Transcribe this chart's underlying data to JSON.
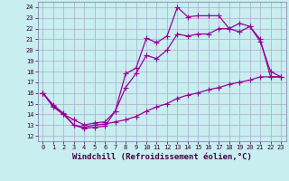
{
  "background_color": "#c8eef0",
  "grid_color": "#aaaacc",
  "line_color": "#990099",
  "xlabel": "Windchill (Refroidissement éolien,°C)",
  "xlabel_fontsize": 6.5,
  "ylabel_values": [
    12,
    13,
    14,
    15,
    16,
    17,
    18,
    19,
    20,
    21,
    22,
    23,
    24
  ],
  "ylim": [
    11.5,
    24.5
  ],
  "xlim": [
    -0.5,
    23.5
  ],
  "xtick_labels": [
    "0",
    "1",
    "2",
    "3",
    "4",
    "5",
    "6",
    "7",
    "8",
    "9",
    "10",
    "11",
    "12",
    "13",
    "14",
    "15",
    "16",
    "17",
    "18",
    "19",
    "20",
    "21",
    "22",
    "23"
  ],
  "series1_x": [
    0,
    1,
    2,
    3,
    4,
    5,
    6,
    7,
    8,
    9,
    10,
    11,
    12,
    13,
    14,
    15,
    16,
    17,
    18,
    19,
    20,
    21,
    22,
    23
  ],
  "series1_y": [
    16.0,
    14.8,
    14.0,
    13.0,
    12.7,
    12.8,
    12.9,
    14.3,
    17.8,
    18.3,
    21.1,
    20.7,
    21.3,
    24.0,
    23.1,
    23.2,
    23.2,
    23.2,
    22.0,
    21.7,
    22.2,
    21.0,
    17.5,
    17.5
  ],
  "series2_x": [
    0,
    1,
    2,
    3,
    4,
    5,
    6,
    7,
    8,
    9,
    10,
    11,
    12,
    13,
    14,
    15,
    16,
    17,
    18,
    19,
    20,
    21,
    22,
    23
  ],
  "series2_y": [
    16.0,
    14.7,
    14.0,
    13.5,
    13.0,
    13.2,
    13.3,
    14.3,
    16.5,
    17.8,
    19.5,
    19.2,
    20.0,
    21.5,
    21.3,
    21.5,
    21.5,
    22.0,
    22.0,
    22.5,
    22.2,
    20.8,
    18.0,
    17.5
  ],
  "series3_x": [
    0,
    1,
    2,
    3,
    4,
    5,
    6,
    7,
    8,
    9,
    10,
    11,
    12,
    13,
    14,
    15,
    16,
    17,
    18,
    19,
    20,
    21,
    22,
    23
  ],
  "series3_y": [
    16.0,
    14.9,
    14.1,
    13.0,
    12.8,
    13.0,
    13.1,
    13.3,
    13.5,
    13.8,
    14.3,
    14.7,
    15.0,
    15.5,
    15.8,
    16.0,
    16.3,
    16.5,
    16.8,
    17.0,
    17.2,
    17.5,
    17.5,
    17.5
  ]
}
